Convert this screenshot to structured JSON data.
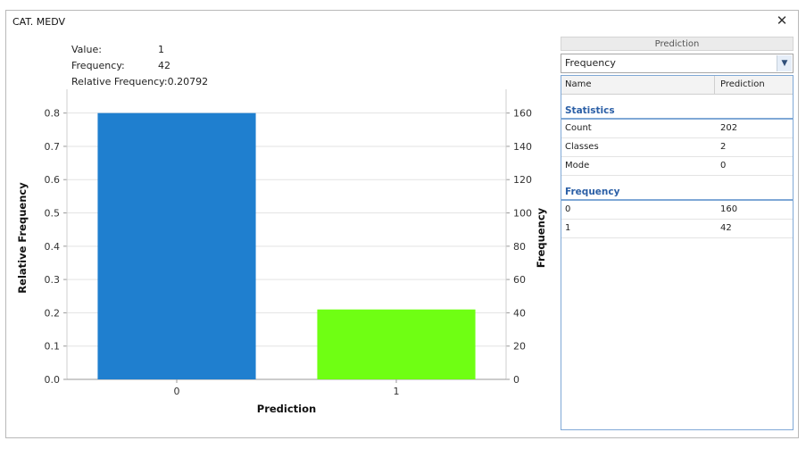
{
  "window": {
    "title": "CAT. MEDV",
    "close_glyph": "✕"
  },
  "info": {
    "value_label": "Value:",
    "value": "1",
    "frequency_label": "Frequency:",
    "frequency": "42",
    "relfreq_label": "Relative Frequency:",
    "relfreq": "0.20792"
  },
  "chart_data": {
    "type": "bar",
    "categories": [
      "0",
      "1"
    ],
    "series": [
      {
        "values": [
          160,
          42
        ]
      }
    ],
    "relative_values": [
      0.79208,
      0.20792
    ],
    "colors": [
      "#1f7fcf",
      "#6fff13"
    ],
    "xlabel": "Prediction",
    "ylabel": "Relative Frequency",
    "y2label": "Frequency",
    "ylim": [
      0,
      0.85
    ],
    "y2lim": [
      0,
      170
    ],
    "yticks": [
      "0.0",
      "0.1",
      "0.2",
      "0.3",
      "0.4",
      "0.5",
      "0.6",
      "0.7",
      "0.8"
    ],
    "y2ticks": [
      "0",
      "20",
      "40",
      "60",
      "80",
      "100",
      "120",
      "140",
      "160"
    ],
    "grid": true
  },
  "panel": {
    "header": "Prediction",
    "select_value": "Frequency",
    "columns": [
      "Name",
      "Prediction"
    ],
    "sections": [
      {
        "title": "Statistics",
        "rows": [
          [
            "Count",
            "202"
          ],
          [
            "Classes",
            "2"
          ],
          [
            "Mode",
            "0"
          ]
        ]
      },
      {
        "title": "Frequency",
        "rows": [
          [
            "0",
            "160"
          ],
          [
            "1",
            "42"
          ]
        ]
      }
    ]
  }
}
